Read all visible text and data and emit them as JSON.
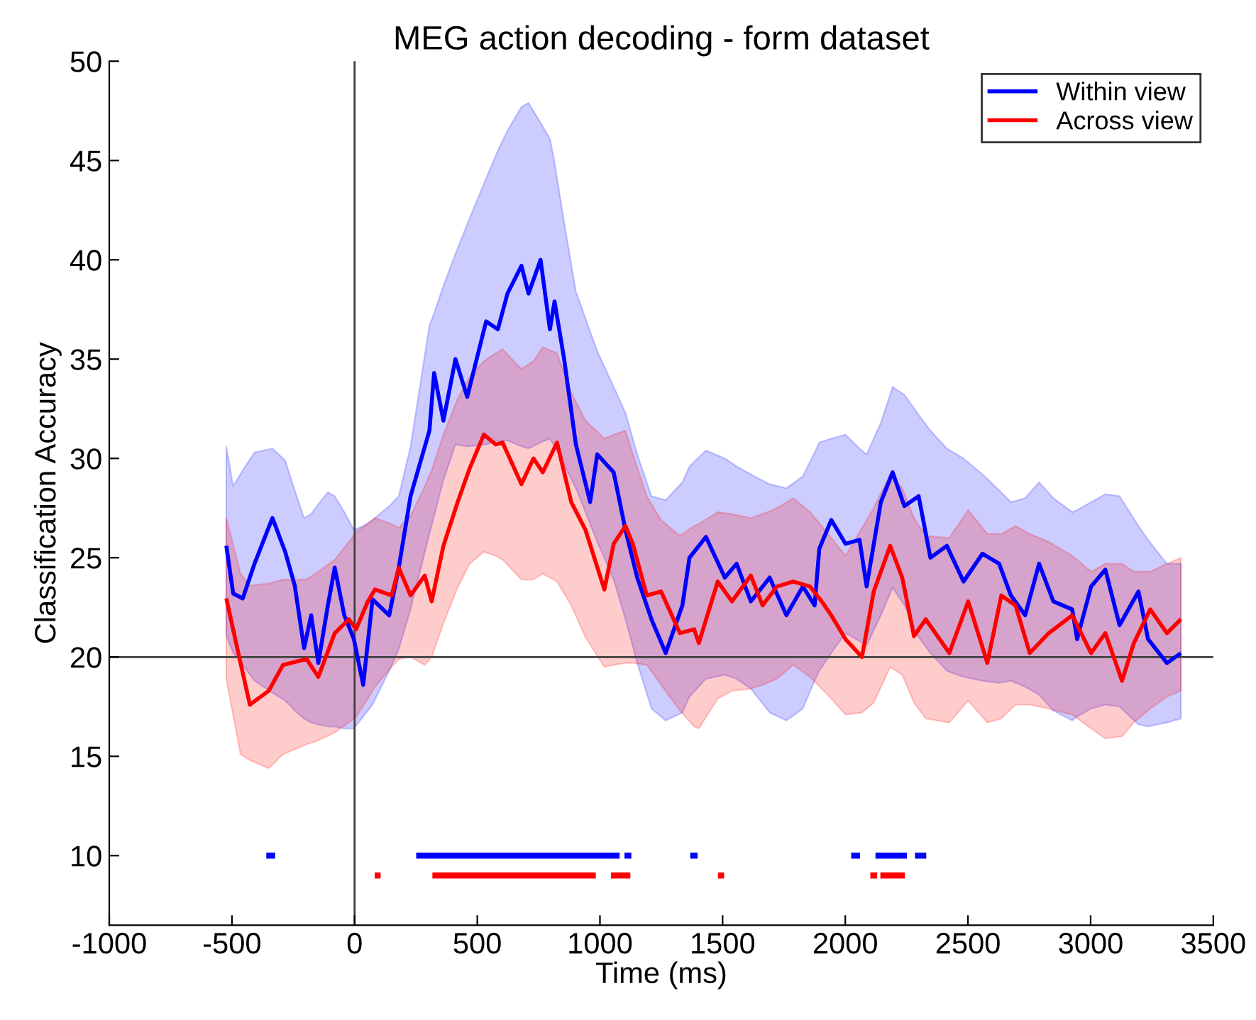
{
  "chart_data": {
    "type": "line",
    "title": "MEG action decoding - form dataset",
    "xlabel": "Time (ms)",
    "ylabel": "Classification Accuracy",
    "xlim": [
      -1000,
      3500
    ],
    "xticks": [
      -1000,
      -500,
      0,
      500,
      1000,
      1500,
      2000,
      2500,
      3000,
      3500
    ],
    "ylim": [
      6.5,
      50
    ],
    "yticks": [
      10,
      15,
      20,
      25,
      30,
      35,
      40,
      45,
      50
    ],
    "grid": false,
    "legend": "top right",
    "line_style": "solid",
    "marker": "none",
    "ref_lines": [
      {
        "axis": "x",
        "value": 0,
        "color": "#404040"
      },
      {
        "axis": "y",
        "value": 20,
        "color": "#404040"
      }
    ],
    "series": [
      {
        "name": "Within view",
        "color": "#0000ff",
        "x": [
          -523,
          -495,
          -456,
          -408,
          -335,
          -283,
          -244,
          -206,
          -177,
          -148,
          -109,
          -81,
          -42,
          -3,
          35,
          73,
          141,
          180,
          228,
          305,
          324,
          362,
          411,
          459,
          536,
          584,
          623,
          680,
          709,
          758,
          796,
          815,
          854,
          902,
          960,
          989,
          1056,
          1104,
          1152,
          1210,
          1268,
          1336,
          1365,
          1432,
          1509,
          1557,
          1615,
          1692,
          1760,
          1827,
          1875,
          1894,
          1943,
          2001,
          2058,
          2087,
          2145,
          2193,
          2241,
          2299,
          2347,
          2414,
          2482,
          2559,
          2627,
          2675,
          2733,
          2790,
          2848,
          2925,
          2945,
          3002,
          3060,
          3118,
          3195,
          3234,
          3311,
          3368
        ],
        "values": [
          25.6,
          23.2,
          22.95,
          24.7,
          27.0,
          25.3,
          23.6,
          20.45,
          22.1,
          19.7,
          22.6,
          24.5,
          22.1,
          20.9,
          18.6,
          22.9,
          22.1,
          24.5,
          28.1,
          31.4,
          34.3,
          31.9,
          35.0,
          33.1,
          36.9,
          36.5,
          38.3,
          39.7,
          38.3,
          40.0,
          36.5,
          37.9,
          35.0,
          30.7,
          27.8,
          30.2,
          29.3,
          26.4,
          24.0,
          21.9,
          20.2,
          22.6,
          25.0,
          26.05,
          24.0,
          24.7,
          22.8,
          24.0,
          22.1,
          23.55,
          22.6,
          25.45,
          26.9,
          25.7,
          25.9,
          23.55,
          27.8,
          29.3,
          27.6,
          28.1,
          25.0,
          25.6,
          23.8,
          25.2,
          24.7,
          23.1,
          22.1,
          24.7,
          22.8,
          22.4,
          20.9,
          23.55,
          24.4,
          21.6,
          23.3,
          20.9,
          19.7,
          20.2
        ],
        "upper": [
          30.6,
          28.6,
          29.4,
          30.3,
          30.5,
          29.9,
          28.4,
          27.0,
          27.2,
          27.7,
          28.3,
          28.1,
          27.3,
          26.4,
          26.6,
          26.9,
          27.6,
          28.1,
          30.6,
          36.7,
          37.3,
          38.7,
          40.3,
          41.8,
          44.1,
          45.5,
          46.5,
          47.7,
          47.9,
          46.9,
          46.1,
          44.9,
          41.9,
          38.4,
          36.4,
          35.4,
          33.6,
          32.3,
          30.2,
          28.1,
          27.9,
          28.8,
          29.6,
          30.4,
          30.0,
          29.6,
          29.2,
          28.7,
          28.5,
          29.1,
          30.3,
          30.8,
          31.0,
          31.2,
          30.5,
          30.2,
          31.8,
          33.6,
          33.2,
          32.2,
          31.4,
          30.5,
          30.0,
          29.2,
          28.4,
          27.8,
          28.0,
          28.8,
          28.0,
          27.3,
          27.4,
          27.8,
          28.2,
          28.1,
          26.6,
          25.9,
          24.7,
          24.7
        ],
        "lower": [
          21.1,
          20.2,
          19.6,
          18.8,
          18.2,
          17.8,
          17.3,
          16.9,
          16.7,
          16.6,
          16.5,
          16.5,
          16.4,
          16.4,
          17.0,
          17.6,
          19.3,
          20.4,
          22.4,
          26.2,
          27.1,
          28.9,
          30.7,
          30.6,
          30.7,
          30.9,
          30.9,
          30.6,
          30.5,
          30.8,
          31.0,
          30.6,
          29.7,
          28.5,
          26.7,
          25.8,
          23.9,
          21.9,
          19.7,
          17.4,
          16.8,
          17.2,
          18.0,
          18.9,
          19.1,
          18.9,
          18.4,
          17.2,
          16.8,
          17.4,
          18.8,
          19.3,
          20.2,
          21.2,
          20.8,
          20.6,
          22.1,
          23.5,
          22.6,
          21.0,
          20.2,
          19.3,
          19.0,
          18.8,
          18.7,
          18.8,
          18.5,
          18.1,
          17.3,
          16.8,
          17.0,
          17.4,
          17.6,
          17.5,
          16.6,
          16.5,
          16.7,
          16.9
        ]
      },
      {
        "name": "Across view",
        "color": "#ff0000",
        "x": [
          -523,
          -465,
          -427,
          -350,
          -292,
          -196,
          -148,
          -81,
          -23,
          6,
          54,
          83,
          151,
          180,
          228,
          286,
          314,
          362,
          420,
          469,
          527,
          575,
          603,
          680,
          729,
          767,
          825,
          854,
          883,
          941,
          1018,
          1056,
          1104,
          1134,
          1191,
          1249,
          1326,
          1384,
          1403,
          1480,
          1538,
          1615,
          1663,
          1721,
          1788,
          1856,
          1904,
          1943,
          2001,
          2068,
          2116,
          2183,
          2232,
          2280,
          2328,
          2424,
          2501,
          2579,
          2636,
          2694,
          2752,
          2829,
          2925,
          3002,
          3060,
          3128,
          3176,
          3243,
          3311,
          3368
        ],
        "values": [
          22.95,
          19.7,
          17.6,
          18.3,
          19.6,
          19.9,
          19.0,
          21.2,
          21.9,
          21.4,
          22.8,
          23.4,
          23.1,
          24.5,
          23.1,
          24.1,
          22.8,
          25.6,
          27.8,
          29.5,
          31.2,
          30.7,
          30.8,
          28.7,
          30.0,
          29.3,
          30.8,
          29.3,
          27.8,
          26.4,
          23.4,
          25.7,
          26.6,
          25.7,
          23.1,
          23.3,
          21.2,
          21.4,
          20.7,
          23.8,
          22.8,
          24.1,
          22.6,
          23.55,
          23.8,
          23.55,
          22.8,
          22.1,
          20.9,
          20.0,
          23.3,
          25.6,
          24.0,
          21.05,
          21.9,
          20.2,
          22.8,
          19.7,
          23.1,
          22.6,
          20.2,
          21.2,
          22.1,
          20.2,
          21.2,
          18.8,
          20.7,
          22.4,
          21.2,
          21.9
        ],
        "upper": [
          27.0,
          24.2,
          23.6,
          23.7,
          23.9,
          23.9,
          24.3,
          24.9,
          25.8,
          26.3,
          26.7,
          27.0,
          26.7,
          26.5,
          27.1,
          28.6,
          29.4,
          31.2,
          33.0,
          34.1,
          34.9,
          35.3,
          35.5,
          34.5,
          34.9,
          35.6,
          35.3,
          34.3,
          33.3,
          31.9,
          31.0,
          31.2,
          31.4,
          30.2,
          28.1,
          26.9,
          26.1,
          26.6,
          26.7,
          27.3,
          27.2,
          27.0,
          27.2,
          27.5,
          28.0,
          27.3,
          26.6,
          26.0,
          25.1,
          26.5,
          27.5,
          29.2,
          28.5,
          27.0,
          26.1,
          26.0,
          27.4,
          26.2,
          26.2,
          26.6,
          26.2,
          25.8,
          25.1,
          24.3,
          24.7,
          24.7,
          24.3,
          24.3,
          24.7,
          25.0
        ],
        "lower": [
          18.9,
          15.1,
          14.8,
          14.4,
          15.1,
          15.6,
          15.8,
          16.2,
          16.7,
          17.0,
          17.9,
          18.5,
          19.5,
          19.9,
          20.0,
          19.6,
          20.0,
          21.7,
          23.5,
          24.7,
          25.3,
          25.1,
          24.9,
          23.9,
          23.9,
          24.2,
          23.8,
          23.2,
          22.6,
          21.0,
          19.5,
          19.6,
          19.7,
          19.7,
          19.6,
          18.6,
          17.3,
          16.5,
          16.4,
          17.9,
          18.3,
          18.4,
          18.6,
          18.9,
          19.6,
          19.0,
          18.4,
          17.9,
          17.1,
          17.2,
          17.7,
          19.5,
          19.1,
          17.7,
          16.9,
          16.7,
          17.8,
          16.7,
          16.9,
          17.6,
          17.6,
          17.4,
          17.1,
          16.4,
          15.9,
          16.0,
          16.7,
          17.4,
          18.0,
          18.3
        ]
      },
      {
        "color": "#0000ff",
        "x": [
          -360,
          -324,
          -30,
          251,
          1080,
          1090,
          1100,
          1128,
          1250,
          1368,
          1398,
          1700,
          2024,
          2060,
          2090,
          2123,
          2251,
          2270,
          2284,
          2330
        ],
        "values": [
          10,
          10,
          null,
          10,
          10,
          null,
          10,
          10,
          null,
          10,
          10,
          null,
          10,
          10,
          null,
          10,
          10,
          null,
          10,
          10
        ]
      },
      {
        "color": "#ff0000",
        "x": [
          82,
          106,
          200,
          317,
          983,
          1010,
          1045,
          1124,
          1300,
          1481,
          1506,
          1800,
          2102,
          2130,
          2136,
          2143,
          2243
        ],
        "values": [
          9,
          9,
          null,
          9,
          9,
          null,
          9,
          9,
          null,
          9,
          9,
          null,
          9,
          9,
          null,
          9,
          9
        ]
      }
    ]
  }
}
